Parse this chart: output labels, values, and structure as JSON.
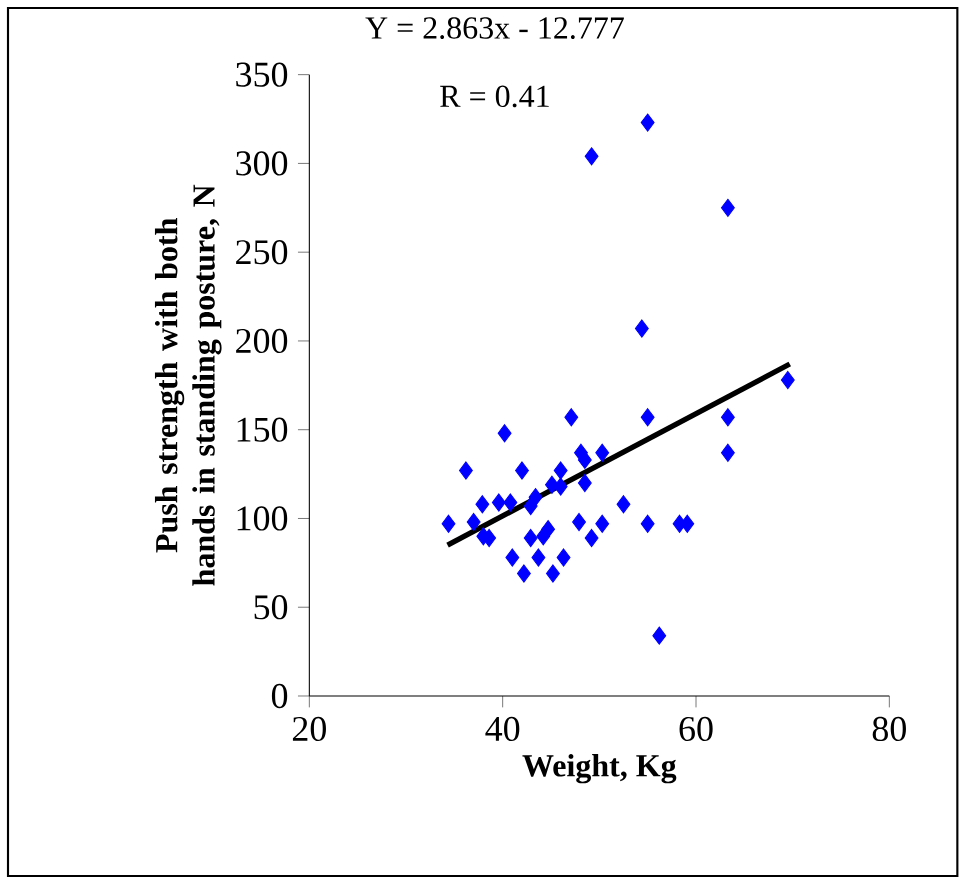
{
  "chart_data": {
    "type": "scatter",
    "xlabel": "Weight, Kg",
    "ylabel": "Push strength with both hands in standing posture, N",
    "annotations": [
      "Y = 2.863x - 12.777",
      "R = 0.41"
    ],
    "xlim": [
      20,
      80
    ],
    "xticks": [
      20,
      40,
      60,
      80
    ],
    "ylim": [
      0,
      350
    ],
    "yticks": [
      0,
      50,
      100,
      150,
      200,
      250,
      300,
      350
    ],
    "grid": false,
    "series": [
      {
        "marker": "diamond",
        "color": "#0000ff",
        "x": [
          34.4,
          36.2,
          37.0,
          37.9,
          38.0,
          38.6,
          39.6,
          40.2,
          40.8,
          41.0,
          42.0,
          42.2,
          42.9,
          43.4,
          42.9,
          43.7,
          44.2,
          44.7,
          45.1,
          45.2,
          46.0,
          46.0,
          46.3,
          47.1,
          47.9,
          48.1,
          48.5,
          48.5,
          49.2,
          49.2,
          50.3,
          50.3,
          52.5,
          54.4,
          55.0,
          55.0,
          55.0,
          56.2,
          58.3,
          59.1,
          63.3,
          63.3,
          63.3,
          69.5
        ],
        "values": [
          97,
          127,
          98,
          108,
          90,
          89,
          109,
          148,
          109,
          78,
          127,
          69,
          107,
          112,
          89,
          78,
          90,
          94,
          119,
          69,
          127,
          118,
          78,
          157,
          98,
          137,
          133,
          120,
          304,
          89,
          137,
          97,
          108,
          207,
          323,
          157,
          97,
          34,
          97,
          97,
          275,
          157,
          137,
          178
        ]
      },
      {
        "type": "line",
        "marker": "none",
        "color": "#000000",
        "x": [
          34.3,
          69.7
        ],
        "values": [
          85,
          187
        ]
      }
    ]
  }
}
